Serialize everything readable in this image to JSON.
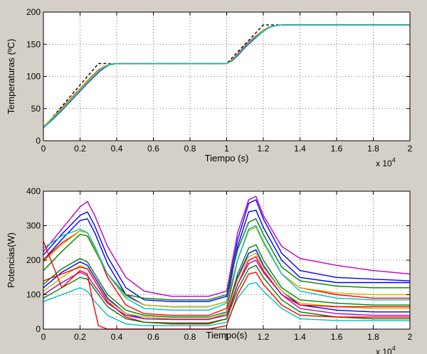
{
  "figure": {
    "background": "#d4d0c8",
    "axes_background": "#ffffff"
  },
  "chart_data": [
    {
      "type": "line",
      "title": "",
      "xlabel": "Tiempo (s)",
      "ylabel": "Temperaturas (ºC)",
      "x_exponent_label": "x 10",
      "x_exponent_power": "4",
      "xlim": [
        0,
        2
      ],
      "ylim": [
        0,
        200
      ],
      "xticks": [
        0,
        0.2,
        0.4,
        0.6,
        0.8,
        1,
        1.2,
        1.4,
        1.6,
        1.8,
        2
      ],
      "xtick_labels": [
        "0",
        "0.2",
        "0.4",
        "0.6",
        "0.8",
        "1",
        "1.2",
        "1.4",
        "1.6",
        "1.8",
        "2"
      ],
      "yticks": [
        0,
        50,
        100,
        150,
        200
      ],
      "ytick_labels": [
        "0",
        "50",
        "100",
        "150",
        "200"
      ],
      "grid": true,
      "series": [
        {
          "color": "#000000",
          "dashed": true,
          "x": [
            0,
            0.3,
            1.0,
            1.2,
            2.0
          ],
          "y": [
            20,
            120,
            120,
            180,
            180
          ]
        },
        {
          "color": "#0000ff",
          "x": [
            0,
            0.05,
            0.1,
            0.15,
            0.2,
            0.25,
            0.3,
            0.33,
            0.36,
            0.4,
            0.5,
            1.0,
            1.03,
            1.06,
            1.1,
            1.15,
            1.2,
            1.23,
            1.27,
            1.3,
            2.0
          ],
          "y": [
            20,
            33,
            47,
            62,
            77,
            92,
            106,
            113,
            118,
            120,
            120,
            120,
            124,
            132,
            145,
            158,
            170,
            176,
            179,
            180,
            180
          ]
        },
        {
          "color": "#008000",
          "x": [
            0,
            0.05,
            0.1,
            0.15,
            0.2,
            0.25,
            0.3,
            0.33,
            0.36,
            0.4,
            0.5,
            1.0,
            1.03,
            1.06,
            1.1,
            1.15,
            1.2,
            1.23,
            1.27,
            1.3,
            2.0
          ],
          "y": [
            21,
            35,
            49,
            64,
            79,
            94,
            108,
            114,
            118,
            120,
            120,
            120,
            125,
            134,
            147,
            160,
            171,
            177,
            179,
            180,
            180
          ]
        },
        {
          "color": "#ff0000",
          "x": [
            0,
            0.05,
            0.1,
            0.15,
            0.2,
            0.25,
            0.3,
            0.33,
            0.36,
            0.4,
            0.5,
            1.0,
            1.03,
            1.06,
            1.1,
            1.15,
            1.2,
            1.23,
            1.27,
            1.3,
            2.0
          ],
          "y": [
            22,
            36,
            51,
            66,
            81,
            96,
            110,
            115,
            119,
            120,
            120,
            120,
            126,
            135,
            148,
            161,
            172,
            177,
            179,
            180,
            180
          ]
        },
        {
          "color": "#bf00bf",
          "x": [
            0,
            0.05,
            0.1,
            0.15,
            0.2,
            0.25,
            0.3,
            0.33,
            0.36,
            0.4,
            0.5,
            1.0,
            1.03,
            1.06,
            1.1,
            1.15,
            1.2,
            1.23,
            1.27,
            1.3,
            2.0
          ],
          "y": [
            21,
            34,
            48,
            63,
            78,
            93,
            107,
            114,
            118,
            120,
            120,
            120,
            125,
            133,
            146,
            159,
            171,
            176,
            179,
            180,
            180
          ]
        },
        {
          "color": "#bfbf00",
          "x": [
            0,
            0.05,
            0.1,
            0.15,
            0.2,
            0.25,
            0.3,
            0.33,
            0.36,
            0.4,
            0.5,
            1.0,
            1.03,
            1.06,
            1.1,
            1.15,
            1.2,
            1.23,
            1.27,
            1.3,
            2.0
          ],
          "y": [
            22,
            36,
            50,
            65,
            80,
            95,
            109,
            115,
            119,
            120,
            120,
            120,
            125,
            134,
            147,
            160,
            172,
            177,
            179,
            180,
            180
          ]
        },
        {
          "color": "#00bfbf",
          "x": [
            0,
            0.05,
            0.1,
            0.15,
            0.2,
            0.25,
            0.3,
            0.33,
            0.36,
            0.4,
            0.5,
            1.0,
            1.03,
            1.06,
            1.1,
            1.15,
            1.2,
            1.23,
            1.27,
            1.3,
            2.0
          ],
          "y": [
            20,
            34,
            48,
            63,
            78,
            93,
            107,
            114,
            118,
            120,
            120,
            120,
            124,
            133,
            146,
            159,
            170,
            176,
            179,
            180,
            180
          ]
        }
      ]
    },
    {
      "type": "line",
      "title": "",
      "xlabel": "Tiempo(s)",
      "ylabel": "Potencias(W)",
      "x_exponent_label": "x 10",
      "x_exponent_power": "4",
      "xlim": [
        0,
        2
      ],
      "ylim": [
        0,
        400
      ],
      "xticks": [
        0,
        0.2,
        0.4,
        0.6,
        0.8,
        1,
        1.2,
        1.4,
        1.6,
        1.8,
        2
      ],
      "xtick_labels": [
        "0",
        "0.2",
        "0.4",
        "0.6",
        "0.8",
        "1",
        "1.2",
        "1.4",
        "1.6",
        "1.8",
        "2"
      ],
      "yticks": [
        0,
        100,
        200,
        300,
        400
      ],
      "ytick_labels": [
        "0",
        "100",
        "200",
        "300",
        "400"
      ],
      "grid": true,
      "series": [
        {
          "color": "#bf00bf",
          "x": [
            0,
            0.1,
            0.2,
            0.24,
            0.28,
            0.35,
            0.45,
            0.55,
            0.7,
            0.9,
            1.0,
            1.06,
            1.12,
            1.16,
            1.2,
            1.3,
            1.4,
            1.6,
            1.8,
            2.0
          ],
          "y": [
            225,
            290,
            355,
            370,
            330,
            240,
            150,
            110,
            95,
            95,
            110,
            280,
            375,
            385,
            330,
            240,
            205,
            185,
            170,
            160
          ]
        },
        {
          "color": "#0000ff",
          "x": [
            0,
            0.1,
            0.2,
            0.24,
            0.28,
            0.35,
            0.45,
            0.55,
            0.7,
            0.9,
            1.0,
            1.06,
            1.12,
            1.16,
            1.2,
            1.3,
            1.4,
            1.6,
            1.8,
            2.0
          ],
          "y": [
            215,
            275,
            330,
            340,
            300,
            210,
            120,
            85,
            80,
            80,
            95,
            260,
            365,
            375,
            320,
            220,
            170,
            150,
            145,
            140
          ]
        },
        {
          "color": "#0000ff",
          "x": [
            0,
            0.1,
            0.2,
            0.24,
            0.28,
            0.35,
            0.45,
            0.55,
            0.7,
            0.9,
            1.0,
            1.06,
            1.12,
            1.16,
            1.2,
            1.3,
            1.4,
            1.6,
            1.8,
            2.0
          ],
          "y": [
            200,
            260,
            315,
            320,
            280,
            190,
            100,
            70,
            65,
            65,
            80,
            240,
            340,
            345,
            295,
            200,
            150,
            135,
            135,
            135
          ]
        },
        {
          "color": "#ff0000",
          "x": [
            0,
            0.1,
            0.2,
            0.24,
            0.28,
            0.35,
            0.45,
            0.55,
            0.7,
            0.9,
            1.0,
            1.06,
            1.12,
            1.16,
            1.2,
            1.3,
            1.4,
            1.6,
            1.8,
            2.0
          ],
          "y": [
            200,
            250,
            285,
            280,
            240,
            150,
            70,
            45,
            40,
            40,
            60,
            200,
            290,
            300,
            250,
            160,
            120,
            100,
            90,
            90
          ]
        },
        {
          "color": "#008000",
          "x": [
            0,
            0.1,
            0.2,
            0.24,
            0.28,
            0.35,
            0.45,
            0.55,
            0.7,
            0.9,
            1.0,
            1.06,
            1.12,
            1.16,
            1.2,
            1.3,
            1.4,
            1.6,
            1.8,
            2.0
          ],
          "y": [
            170,
            225,
            275,
            270,
            230,
            160,
            100,
            90,
            85,
            85,
            100,
            230,
            310,
            320,
            275,
            180,
            140,
            125,
            120,
            120
          ]
        },
        {
          "color": "#bfbf00",
          "x": [
            0,
            0.1,
            0.2,
            0.24,
            0.28,
            0.35,
            0.45,
            0.55,
            0.7,
            0.9,
            1.0,
            1.06,
            1.12,
            1.16,
            1.2,
            1.3,
            1.4,
            1.6,
            1.8,
            2.0
          ],
          "y": [
            195,
            245,
            285,
            280,
            235,
            160,
            95,
            70,
            65,
            65,
            80,
            200,
            285,
            295,
            250,
            160,
            120,
            105,
            100,
            100
          ]
        },
        {
          "color": "#00bfbf",
          "x": [
            0,
            0.1,
            0.2,
            0.24,
            0.28,
            0.35,
            0.45,
            0.55,
            0.7,
            0.9,
            1.0,
            1.06,
            1.12,
            1.16,
            1.2,
            1.3,
            1.4,
            1.6,
            1.8,
            2.0
          ],
          "y": [
            235,
            270,
            290,
            280,
            240,
            160,
            90,
            60,
            55,
            55,
            75,
            200,
            290,
            300,
            255,
            160,
            110,
            90,
            85,
            85
          ]
        },
        {
          "color": "#008000",
          "x": [
            0,
            0.1,
            0.2,
            0.24,
            0.28,
            0.35,
            0.45,
            0.55,
            0.7,
            0.9,
            1.0,
            1.06,
            1.12,
            1.16,
            1.2,
            1.3,
            1.4,
            1.6,
            1.8,
            2.0
          ],
          "y": [
            130,
            175,
            205,
            195,
            160,
            100,
            55,
            40,
            35,
            35,
            50,
            160,
            235,
            245,
            200,
            120,
            85,
            75,
            70,
            70
          ]
        },
        {
          "color": "#0000ff",
          "x": [
            0,
            0.1,
            0.2,
            0.24,
            0.28,
            0.35,
            0.45,
            0.55,
            0.7,
            0.9,
            1.0,
            1.06,
            1.12,
            1.16,
            1.2,
            1.3,
            1.4,
            1.6,
            1.8,
            2.0
          ],
          "y": [
            120,
            165,
            195,
            185,
            150,
            90,
            45,
            30,
            28,
            28,
            45,
            150,
            220,
            230,
            185,
            110,
            70,
            55,
            50,
            50
          ]
        },
        {
          "color": "#bfbf00",
          "x": [
            0,
            0.1,
            0.2,
            0.24,
            0.28,
            0.35,
            0.45,
            0.55,
            0.7,
            0.9,
            1.0,
            1.06,
            1.12,
            1.16,
            1.2,
            1.3,
            1.4,
            1.6,
            1.8,
            2.0
          ],
          "y": [
            110,
            150,
            185,
            175,
            140,
            85,
            45,
            35,
            30,
            30,
            45,
            145,
            210,
            220,
            180,
            110,
            75,
            65,
            60,
            60
          ]
        },
        {
          "color": "#ff0000",
          "x": [
            0,
            0.1,
            0.2,
            0.24,
            0.28,
            0.35,
            0.45,
            0.55,
            0.7,
            0.9,
            1.0,
            1.06,
            1.12,
            1.16,
            1.2,
            1.3,
            1.4,
            1.6,
            1.8,
            2.0
          ],
          "y": [
            140,
            160,
            180,
            175,
            140,
            80,
            35,
            20,
            15,
            15,
            30,
            130,
            200,
            210,
            170,
            100,
            70,
            65,
            65,
            65
          ]
        },
        {
          "color": "#bf00bf",
          "x": [
            0,
            0.1,
            0.2,
            0.24,
            0.28,
            0.35,
            0.45,
            0.55,
            0.7,
            0.9,
            1.0,
            1.06,
            1.12,
            1.16,
            1.2,
            1.3,
            1.4,
            1.6,
            1.8,
            2.0
          ],
          "y": [
            100,
            135,
            165,
            155,
            125,
            75,
            40,
            30,
            28,
            28,
            40,
            130,
            190,
            200,
            165,
            100,
            60,
            45,
            40,
            40
          ]
        },
        {
          "color": "#008000",
          "x": [
            0,
            0.1,
            0.2,
            0.24,
            0.28,
            0.35,
            0.45,
            0.55,
            0.7,
            0.9,
            1.0,
            1.06,
            1.12,
            1.16,
            1.2,
            1.3,
            1.4,
            1.6,
            1.8,
            2.0
          ],
          "y": [
            90,
            120,
            150,
            145,
            115,
            65,
            30,
            20,
            18,
            18,
            30,
            115,
            175,
            185,
            150,
            85,
            50,
            35,
            30,
            30
          ]
        },
        {
          "color": "#00bfbf",
          "x": [
            0,
            0.1,
            0.2,
            0.24,
            0.28,
            0.35,
            0.45,
            0.55,
            0.7,
            0.9,
            1.0,
            1.06,
            1.12,
            1.16,
            1.2,
            1.3,
            1.4,
            1.6,
            1.8,
            2.0
          ],
          "y": [
            80,
            100,
            120,
            110,
            80,
            40,
            15,
            10,
            10,
            10,
            20,
            90,
            130,
            135,
            110,
            60,
            30,
            25,
            25,
            25
          ]
        },
        {
          "color": "#ff0000",
          "x": [
            0,
            0.1,
            0.2,
            0.24,
            0.27,
            0.3,
            0.35,
            0.45,
            0.6,
            0.9,
            1.0,
            1.06,
            1.12,
            1.16,
            1.2,
            1.3,
            1.4,
            1.6,
            1.8,
            2.0
          ],
          "y": [
            255,
            120,
            170,
            160,
            80,
            10,
            0,
            0,
            0,
            0,
            10,
            100,
            160,
            165,
            130,
            70,
            40,
            35,
            35,
            35
          ]
        }
      ]
    }
  ]
}
